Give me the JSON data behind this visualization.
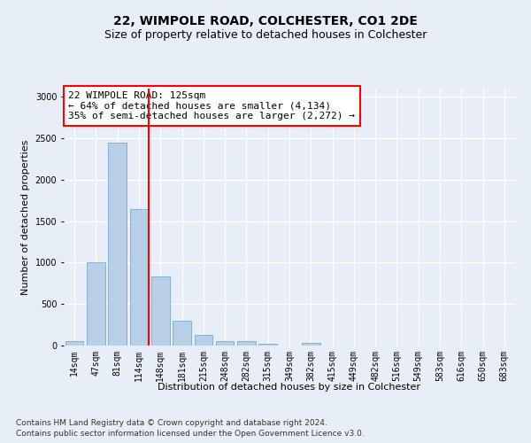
{
  "title1": "22, WIMPOLE ROAD, COLCHESTER, CO1 2DE",
  "title2": "Size of property relative to detached houses in Colchester",
  "xlabel": "Distribution of detached houses by size in Colchester",
  "ylabel": "Number of detached properties",
  "bin_labels": [
    "14sqm",
    "47sqm",
    "81sqm",
    "114sqm",
    "148sqm",
    "181sqm",
    "215sqm",
    "248sqm",
    "282sqm",
    "315sqm",
    "349sqm",
    "382sqm",
    "415sqm",
    "449sqm",
    "482sqm",
    "516sqm",
    "549sqm",
    "583sqm",
    "616sqm",
    "650sqm",
    "683sqm"
  ],
  "bar_heights": [
    55,
    1000,
    2450,
    1650,
    830,
    300,
    130,
    55,
    50,
    20,
    0,
    30,
    0,
    0,
    0,
    0,
    0,
    0,
    0,
    0,
    0
  ],
  "bar_color": "#b8cfe8",
  "bar_edge_color": "#6a9fc8",
  "bar_width": 0.85,
  "vline_color": "red",
  "vline_x": 3.45,
  "ylim": [
    0,
    3100
  ],
  "yticks": [
    0,
    500,
    1000,
    1500,
    2000,
    2500,
    3000
  ],
  "annotation_text": "22 WIMPOLE ROAD: 125sqm\n← 64% of detached houses are smaller (4,134)\n35% of semi-detached houses are larger (2,272) →",
  "annotation_box_color": "white",
  "annotation_box_edge_color": "red",
  "footer1": "Contains HM Land Registry data © Crown copyright and database right 2024.",
  "footer2": "Contains public sector information licensed under the Open Government Licence v3.0.",
  "bg_color": "#e8eef8",
  "plot_bg_color": "#e8eef8",
  "grid_color": "white",
  "title1_fontsize": 10,
  "title2_fontsize": 9,
  "axis_label_fontsize": 8,
  "tick_fontsize": 7,
  "annotation_fontsize": 8,
  "footer_fontsize": 6.5
}
